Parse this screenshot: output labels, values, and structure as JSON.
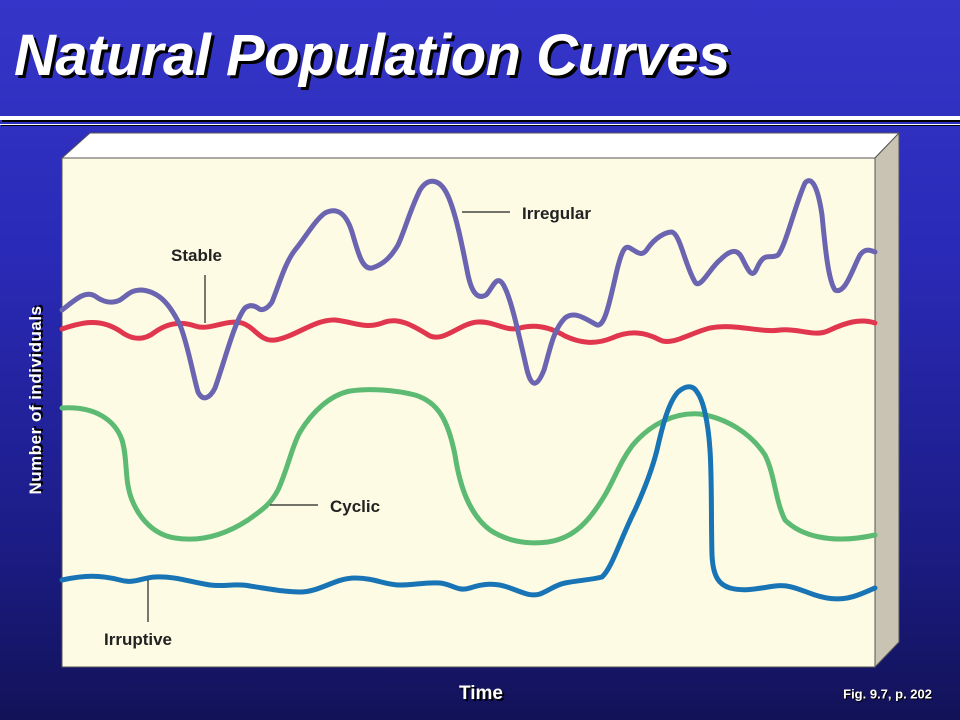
{
  "slide": {
    "title": "Natural Population Curves",
    "fig_ref": "Fig. 9.7, p. 202"
  },
  "chart_data": {
    "type": "line",
    "xlabel": "Time",
    "ylabel": "Number of individuals",
    "axis_ticks": false,
    "grid": false,
    "series": [
      {
        "name": "Irregular",
        "color": "#6b64b0"
      },
      {
        "name": "Stable",
        "color": "#e0364e"
      },
      {
        "name": "Cyclic",
        "color": "#5cba72"
      },
      {
        "name": "Irruptive",
        "color": "#1874b4"
      }
    ]
  },
  "colors": {
    "background": "#2a2ab8",
    "panel": "#fdfbe4",
    "panel_side": "#c8c3b2",
    "panel_top": "#ffffff"
  }
}
